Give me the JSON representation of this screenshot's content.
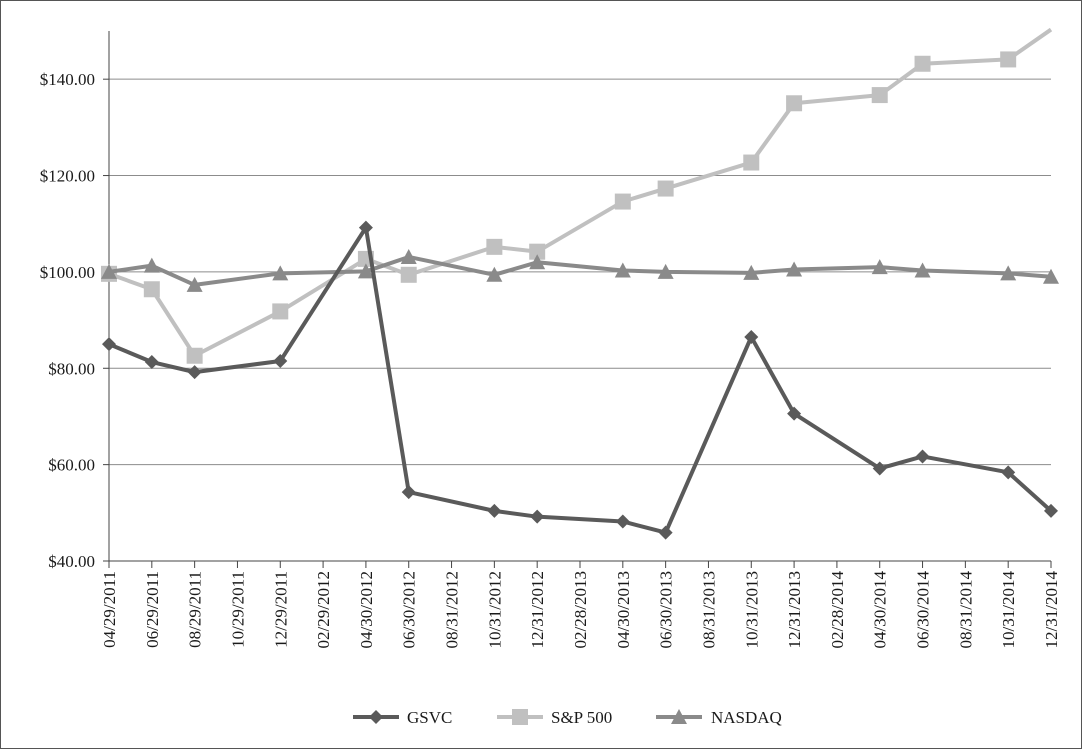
{
  "chart_data": {
    "type": "line",
    "title": "",
    "xlabel": "",
    "ylabel": "",
    "x": [
      "04/29/2011",
      "06/29/2011",
      "08/29/2011",
      "10/29/2011",
      "12/29/2011",
      "02/29/2012",
      "04/30/2012",
      "06/30/2012",
      "08/31/2012",
      "10/31/2012",
      "12/31/2012",
      "02/28/2013",
      "04/30/2013",
      "06/30/2013",
      "08/31/2013",
      "10/31/2013",
      "12/31/2013",
      "02/28/2014",
      "04/30/2014",
      "06/30/2014",
      "08/31/2014",
      "10/31/2014",
      "12/31/2014"
    ],
    "ylim": [
      40,
      150
    ],
    "yticks": [
      40,
      60,
      80,
      100,
      120,
      140
    ],
    "ytick_labels": [
      "$40.00",
      "$60.00",
      "$80.00",
      "$100.00",
      "$120.00",
      "$140.00"
    ],
    "grid": "horizontal",
    "legend_position": "bottom",
    "series": [
      {
        "name": "GSVC",
        "marker": "diamond",
        "color": "#5a5a5a",
        "points": [
          [
            "04/29/2011",
            85.0
          ],
          [
            "06/29/2011",
            81.3
          ],
          [
            "08/29/2011",
            79.2
          ],
          [
            "12/29/2011",
            81.5
          ],
          [
            "04/30/2012",
            109.2
          ],
          [
            "06/30/2012",
            54.3
          ],
          [
            "10/31/2012",
            50.4
          ],
          [
            "12/31/2012",
            49.2
          ],
          [
            "04/30/2013",
            48.2
          ],
          [
            "06/30/2013",
            45.9
          ],
          [
            "10/31/2013",
            86.5
          ],
          [
            "12/31/2013",
            70.6
          ],
          [
            "04/30/2014",
            59.2
          ],
          [
            "06/30/2014",
            61.7
          ],
          [
            "10/31/2014",
            58.4
          ],
          [
            "12/31/2014",
            50.4
          ]
        ]
      },
      {
        "name": "S&P 500",
        "marker": "square",
        "color": "#c0c0c0",
        "points": [
          [
            "04/29/2011",
            99.6
          ],
          [
            "06/29/2011",
            96.4
          ],
          [
            "08/29/2011",
            82.6
          ],
          [
            "12/29/2011",
            91.8
          ],
          [
            "04/30/2012",
            102.7
          ],
          [
            "06/30/2012",
            99.4
          ],
          [
            "10/31/2012",
            105.2
          ],
          [
            "12/31/2012",
            104.2
          ],
          [
            "04/30/2013",
            114.6
          ],
          [
            "06/30/2013",
            117.3
          ],
          [
            "10/31/2013",
            122.7
          ],
          [
            "12/31/2013",
            135.0
          ],
          [
            "04/30/2014",
            136.7
          ],
          [
            "06/30/2014",
            143.2
          ],
          [
            "10/31/2014",
            144.1
          ],
          [
            "12/31/2014",
            150.3
          ]
        ]
      },
      {
        "name": "NASDAQ",
        "marker": "triangle",
        "color": "#8a8a8a",
        "points": [
          [
            "04/29/2011",
            100.0
          ],
          [
            "06/29/2011",
            101.3
          ],
          [
            "08/29/2011",
            97.3
          ],
          [
            "12/29/2011",
            99.7
          ],
          [
            "04/30/2012",
            100.1
          ],
          [
            "06/30/2012",
            103.1
          ],
          [
            "10/31/2012",
            99.4
          ],
          [
            "12/31/2012",
            102.0
          ],
          [
            "04/30/2013",
            100.3
          ],
          [
            "06/30/2013",
            100.0
          ],
          [
            "10/31/2013",
            99.8
          ],
          [
            "12/31/2013",
            100.5
          ],
          [
            "04/30/2014",
            101.0
          ],
          [
            "06/30/2014",
            100.3
          ],
          [
            "10/31/2014",
            99.7
          ],
          [
            "12/31/2014",
            99.0
          ]
        ]
      }
    ]
  }
}
